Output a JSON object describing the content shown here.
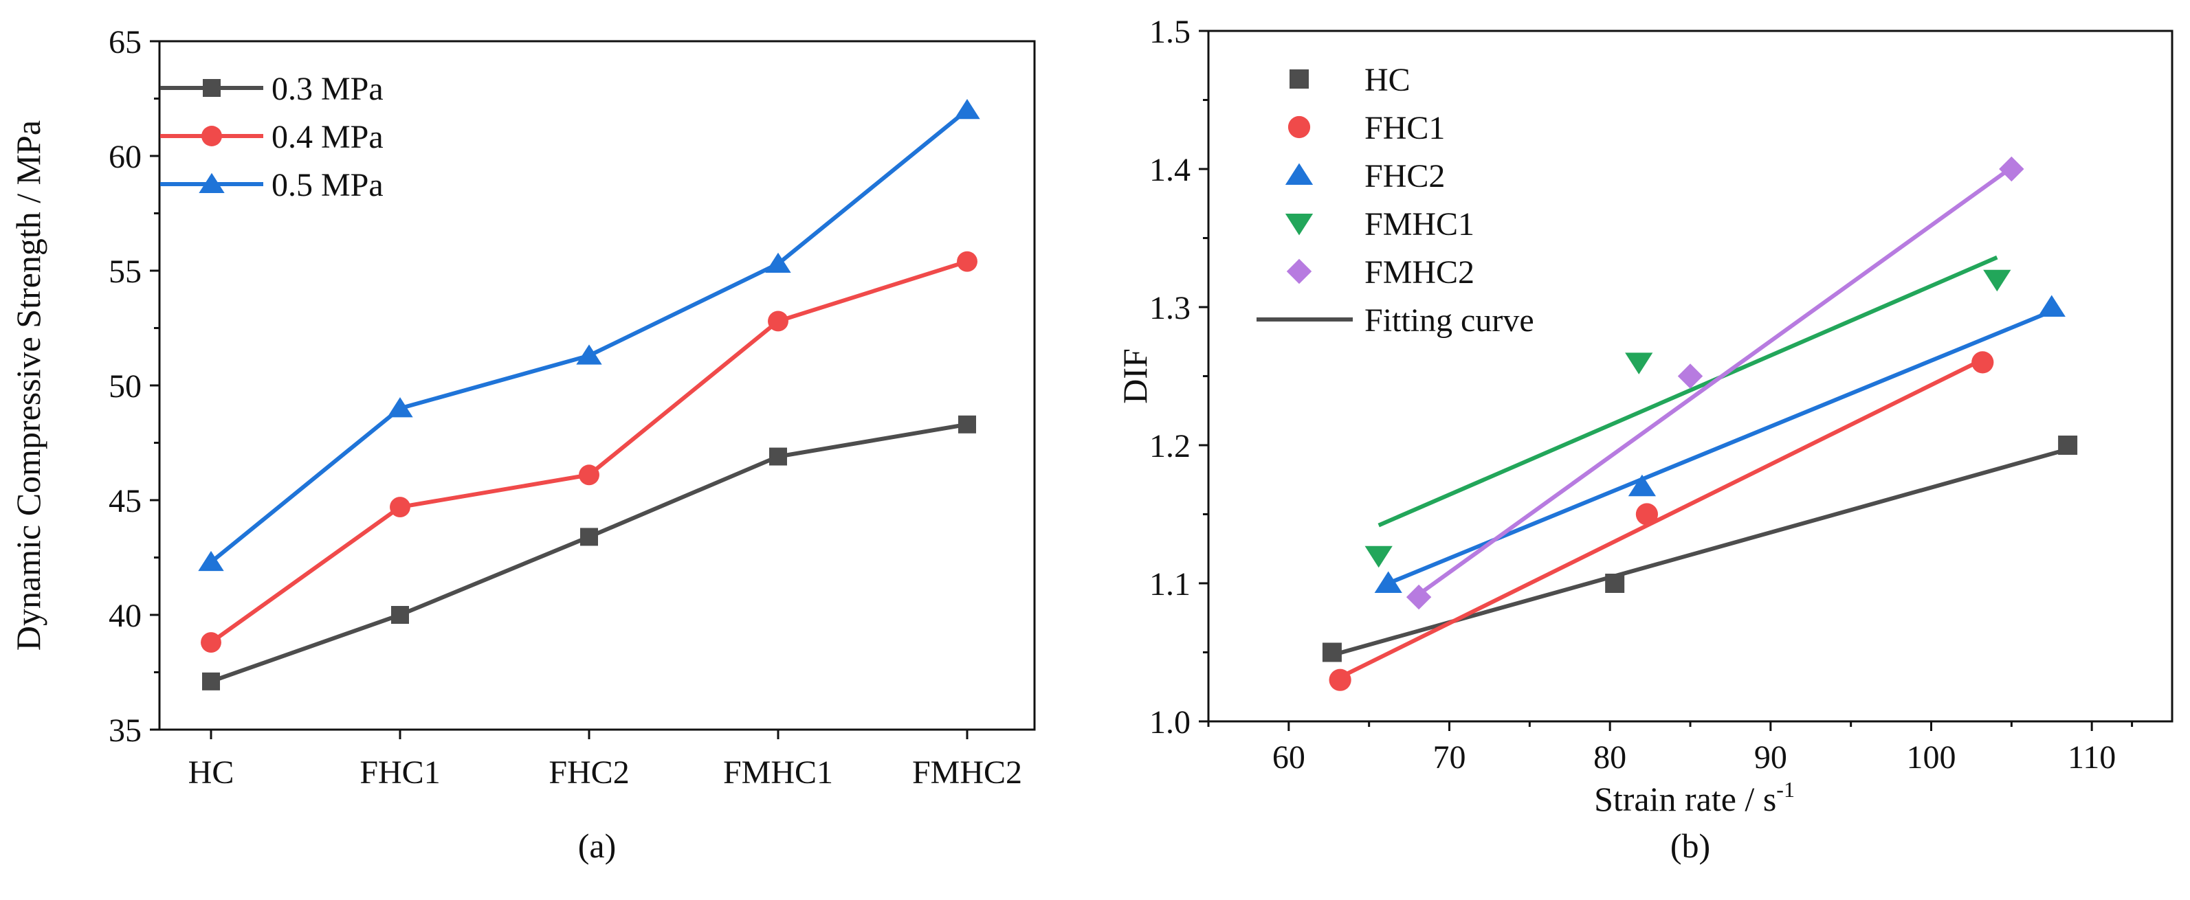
{
  "chart_data": [
    {
      "type": "line",
      "caption": "(a)",
      "title": "",
      "xlabel": "",
      "ylabel": "Dynamic Compressive Strength / MPa",
      "categories": [
        "HC",
        "FHC1",
        "FHC2",
        "FMHC1",
        "FMHC2"
      ],
      "ylim": [
        35,
        65
      ],
      "yticks": [
        "35",
        "40",
        "45",
        "50",
        "55",
        "60",
        "65"
      ],
      "legend_position": "top-left",
      "series": [
        {
          "name": "0.3 MPa",
          "marker": "square",
          "color": "#4d4d4d",
          "values": [
            37.1,
            40.0,
            43.4,
            46.9,
            48.3
          ]
        },
        {
          "name": "0.4 MPa",
          "marker": "circle",
          "color": "#f04a4a",
          "values": [
            38.8,
            44.7,
            46.1,
            52.8,
            55.4
          ]
        },
        {
          "name": "0.5 MPa",
          "marker": "triangle-up",
          "color": "#1f74d8",
          "values": [
            42.3,
            49.0,
            51.3,
            55.3,
            62.0
          ]
        }
      ]
    },
    {
      "type": "scatter",
      "caption": "(b)",
      "title": "",
      "xlabel": "Strain rate / s",
      "xlabel_superscript": "-1",
      "ylabel": "DIF",
      "xlim": [
        55,
        115
      ],
      "ylim": [
        1.0,
        1.5
      ],
      "xticks": [
        "60",
        "70",
        "80",
        "90",
        "100",
        "110"
      ],
      "yticks": [
        "1.0",
        "1.1",
        "1.2",
        "1.3",
        "1.4",
        "1.5"
      ],
      "legend_position": "top-left",
      "fit_legend_label": "Fitting curve",
      "series": [
        {
          "name": "HC",
          "marker": "square",
          "color": "#4d4d4d",
          "points": [
            [
              62.7,
              1.05
            ],
            [
              80.3,
              1.1
            ],
            [
              108.5,
              1.2
            ]
          ],
          "fit": [
            [
              62.7,
              1.048
            ],
            [
              108.5,
              1.197
            ]
          ]
        },
        {
          "name": "FHC1",
          "marker": "circle",
          "color": "#f04a4a",
          "points": [
            [
              63.2,
              1.03
            ],
            [
              82.3,
              1.15
            ],
            [
              103.2,
              1.26
            ]
          ],
          "fit": [
            [
              63.2,
              1.032
            ],
            [
              103.2,
              1.262
            ]
          ]
        },
        {
          "name": "FHC2",
          "marker": "triangle-up",
          "color": "#1f74d8",
          "points": [
            [
              66.2,
              1.1
            ],
            [
              82.0,
              1.17
            ],
            [
              107.5,
              1.3
            ]
          ],
          "fit": [
            [
              66.2,
              1.1
            ],
            [
              107.5,
              1.297
            ]
          ]
        },
        {
          "name": "FMHC1",
          "marker": "triangle-down",
          "color": "#22a65a",
          "points": [
            [
              65.6,
              1.12
            ],
            [
              81.8,
              1.26
            ],
            [
              104.1,
              1.32
            ]
          ],
          "fit": [
            [
              65.6,
              1.142
            ],
            [
              104.1,
              1.336
            ]
          ]
        },
        {
          "name": "FMHC2",
          "marker": "diamond",
          "color": "#b77be0",
          "points": [
            [
              68.1,
              1.09
            ],
            [
              85.0,
              1.25
            ],
            [
              105.0,
              1.4
            ]
          ],
          "fit": [
            [
              68.1,
              1.092
            ],
            [
              105.0,
              1.401
            ]
          ]
        }
      ]
    }
  ]
}
